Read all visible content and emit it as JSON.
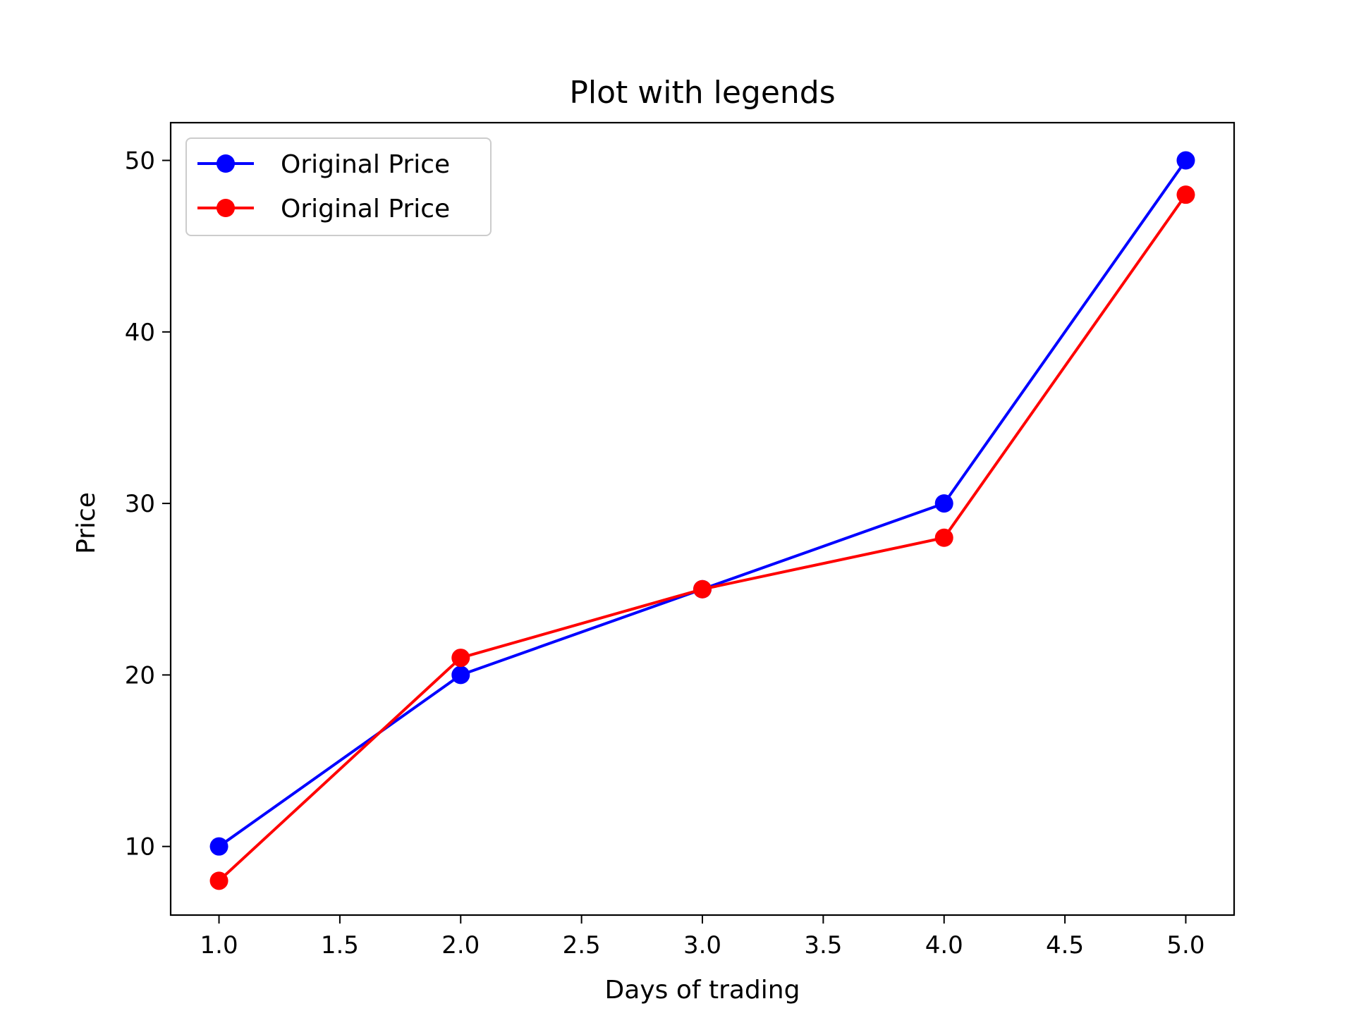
{
  "chart_data": {
    "type": "line",
    "title": "Plot with legends",
    "xlabel": "Days of trading",
    "ylabel": "Price",
    "x": [
      1.0,
      2.0,
      3.0,
      4.0,
      5.0
    ],
    "xlim": [
      0.8,
      5.2
    ],
    "ylim": [
      6,
      52.2
    ],
    "xticks": [
      1.0,
      1.5,
      2.0,
      2.5,
      3.0,
      3.5,
      4.0,
      4.5,
      5.0
    ],
    "xtick_labels": [
      "1.0",
      "1.5",
      "2.0",
      "2.5",
      "3.0",
      "3.5",
      "4.0",
      "4.5",
      "5.0"
    ],
    "yticks": [
      10,
      20,
      30,
      40,
      50
    ],
    "ytick_labels": [
      "10",
      "20",
      "30",
      "40",
      "50"
    ],
    "grid": false,
    "legend_position": "top-left",
    "series": [
      {
        "name": "Original Price",
        "color": "#0000ff",
        "marker": "circle",
        "values": [
          10,
          20,
          25,
          30,
          50
        ]
      },
      {
        "name": "Original Price",
        "color": "#ff0000",
        "marker": "circle",
        "values": [
          8,
          21,
          25,
          28,
          48
        ]
      }
    ]
  }
}
